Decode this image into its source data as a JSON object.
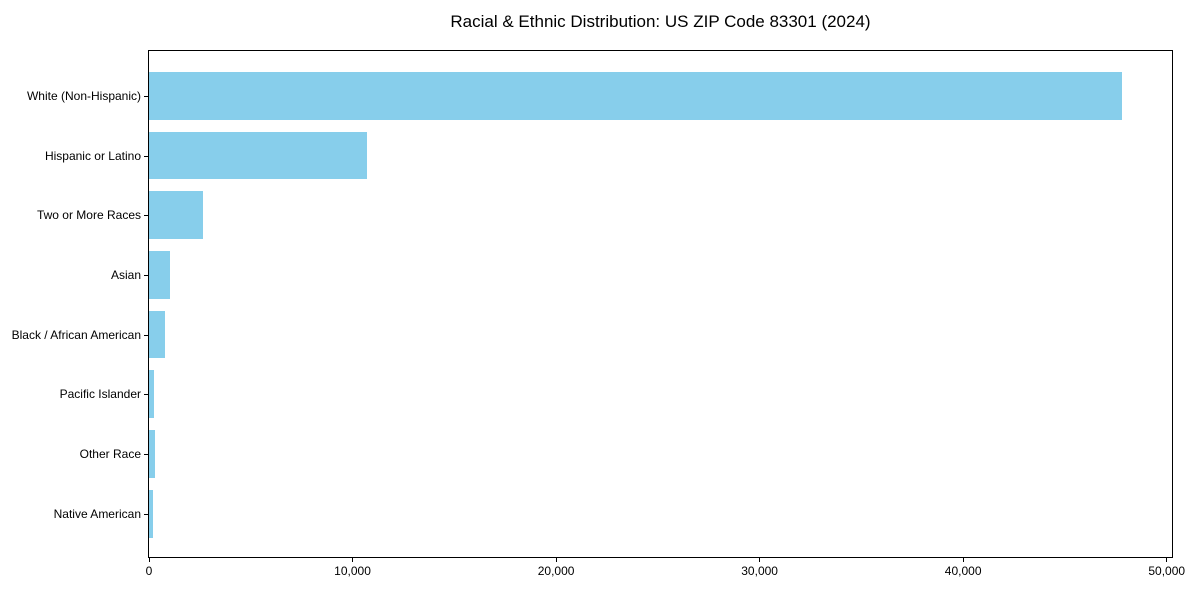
{
  "chart_data": {
    "type": "bar",
    "orientation": "horizontal",
    "title": "Racial & Ethnic Distribution: US ZIP Code 83301 (2024)",
    "categories": [
      "White (Non-Hispanic)",
      "Hispanic or Latino",
      "Two or More Races",
      "Asian",
      "Black / African American",
      "Pacific Islander",
      "Other Race",
      "Native American"
    ],
    "values": [
      47800,
      10720,
      2650,
      1050,
      800,
      270,
      310,
      210
    ],
    "title_note": "",
    "xlabel": "",
    "ylabel": "",
    "xlim": [
      0,
      50260
    ],
    "x_ticks": [
      {
        "value": 0,
        "label": "0"
      },
      {
        "value": 10000,
        "label": "10,000"
      },
      {
        "value": 20000,
        "label": "20,000"
      },
      {
        "value": 30000,
        "label": "30,000"
      },
      {
        "value": 40000,
        "label": "40,000"
      },
      {
        "value": 50000,
        "label": "50,000"
      }
    ],
    "bar_color": "#87CEEB",
    "axis_color": "#000000",
    "text_color": "#000000",
    "background_color": "#ffffff",
    "grid": false,
    "legend": "none"
  }
}
